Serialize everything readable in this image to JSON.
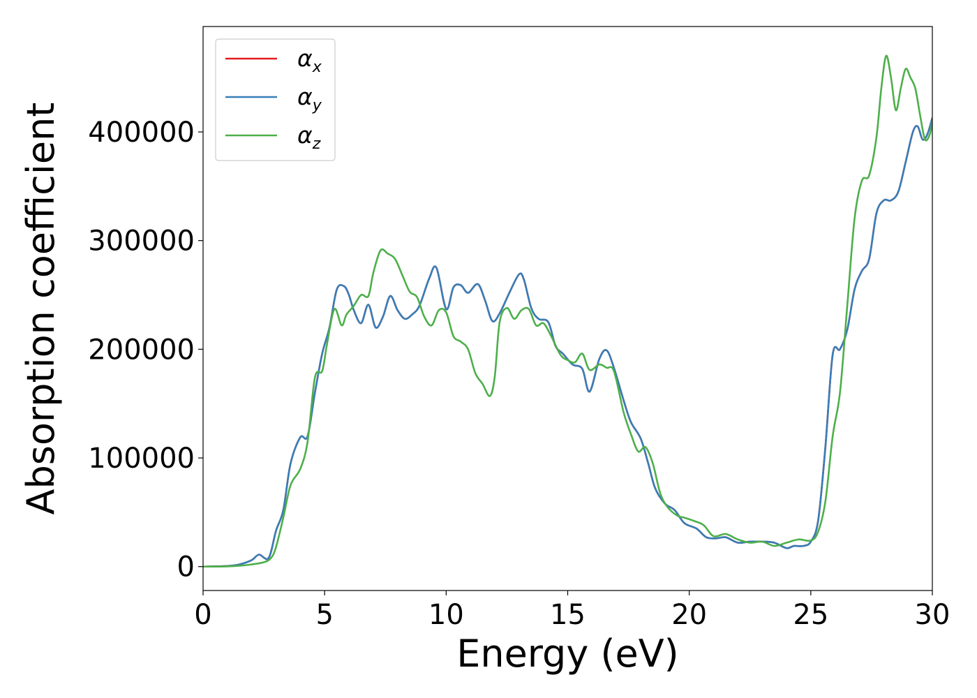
{
  "chart_data": {
    "type": "line",
    "xlabel": "Energy (eV)",
    "ylabel": "Absorption coefficient",
    "xlim": [
      0,
      30
    ],
    "ylim": [
      -22000,
      497000
    ],
    "xticks": [
      0,
      5,
      10,
      15,
      20,
      25,
      30
    ],
    "xtick_labels": [
      "0",
      "5",
      "10",
      "15",
      "20",
      "25",
      "30"
    ],
    "yticks": [
      0,
      100000,
      200000,
      300000,
      400000
    ],
    "ytick_labels": [
      "0",
      "100000",
      "200000",
      "300000",
      "400000"
    ],
    "grid": false,
    "legend_position": "top-left",
    "series": [
      {
        "name": "α",
        "subscript": "x",
        "color": "#e41a1c",
        "x": [
          0,
          1,
          1.5,
          2,
          2.3,
          2.7,
          3,
          3.3,
          3.6,
          4,
          4.3,
          4.6,
          4.9,
          5.2,
          5.5,
          5.8,
          6,
          6.2,
          6.5,
          6.8,
          7.1,
          7.4,
          7.7,
          8,
          8.3,
          8.6,
          8.9,
          9.3,
          9.6,
          10,
          10.3,
          10.6,
          10.9,
          11.3,
          11.6,
          11.9,
          12.2,
          12.6,
          13,
          13.2,
          13.5,
          13.8,
          14.2,
          14.5,
          14.8,
          15.2,
          15.6,
          15.9,
          16.3,
          16.6,
          16.9,
          17.3,
          17.6,
          18,
          18.3,
          18.6,
          19,
          19.4,
          19.8,
          20.3,
          20.7,
          21.1,
          21.5,
          22,
          22.5,
          23,
          23.5,
          24,
          24.3,
          24.7,
          25,
          25.3,
          25.6,
          25.9,
          26.2,
          26.5,
          26.8,
          27.1,
          27.4,
          27.7,
          28,
          28.3,
          28.6,
          28.9,
          29.2,
          29.4,
          29.6,
          29.8,
          30
        ],
        "values": [
          0,
          500,
          2000,
          6000,
          11000,
          8000,
          33000,
          52000,
          95000,
          119000,
          120000,
          160000,
          196000,
          220000,
          255000,
          258000,
          250000,
          236000,
          224000,
          241000,
          220000,
          230000,
          249000,
          236000,
          228000,
          232000,
          240000,
          265000,
          275000,
          237000,
          257000,
          259000,
          252000,
          260000,
          245000,
          226000,
          233000,
          252000,
          269000,
          264000,
          238000,
          228000,
          225000,
          203000,
          196000,
          186000,
          182000,
          161000,
          191000,
          199000,
          183000,
          153000,
          133000,
          118000,
          96000,
          72000,
          58000,
          52000,
          40000,
          35000,
          27000,
          26000,
          27000,
          22000,
          23000,
          23000,
          22000,
          17000,
          19000,
          19000,
          23000,
          42000,
          110000,
          195000,
          200000,
          218000,
          255000,
          272000,
          283000,
          325000,
          337000,
          337000,
          345000,
          372000,
          400000,
          405000,
          393000,
          398000,
          413000
        ]
      },
      {
        "name": "α",
        "subscript": "y",
        "color": "#377eb8",
        "x": [
          0,
          1,
          1.5,
          2,
          2.3,
          2.7,
          3,
          3.3,
          3.6,
          4,
          4.3,
          4.6,
          4.9,
          5.2,
          5.5,
          5.8,
          6,
          6.2,
          6.5,
          6.8,
          7.1,
          7.4,
          7.7,
          8,
          8.3,
          8.6,
          8.9,
          9.3,
          9.6,
          10,
          10.3,
          10.6,
          10.9,
          11.3,
          11.6,
          11.9,
          12.2,
          12.6,
          13,
          13.2,
          13.5,
          13.8,
          14.2,
          14.5,
          14.8,
          15.2,
          15.6,
          15.9,
          16.3,
          16.6,
          16.9,
          17.3,
          17.6,
          18,
          18.3,
          18.6,
          19,
          19.4,
          19.8,
          20.3,
          20.7,
          21.1,
          21.5,
          22,
          22.5,
          23,
          23.5,
          24,
          24.3,
          24.7,
          25,
          25.3,
          25.6,
          25.9,
          26.2,
          26.5,
          26.8,
          27.1,
          27.4,
          27.7,
          28,
          28.3,
          28.6,
          28.9,
          29.2,
          29.4,
          29.6,
          29.8,
          30
        ],
        "values": [
          0,
          500,
          2000,
          6000,
          11000,
          8000,
          33000,
          52000,
          95000,
          119000,
          120000,
          160000,
          196000,
          220000,
          255000,
          258000,
          250000,
          236000,
          224000,
          241000,
          220000,
          230000,
          249000,
          236000,
          228000,
          232000,
          240000,
          265000,
          275000,
          237000,
          257000,
          259000,
          252000,
          260000,
          245000,
          226000,
          233000,
          252000,
          269000,
          264000,
          238000,
          228000,
          225000,
          203000,
          196000,
          186000,
          182000,
          161000,
          191000,
          199000,
          183000,
          153000,
          133000,
          118000,
          96000,
          72000,
          58000,
          52000,
          40000,
          35000,
          27000,
          26000,
          27000,
          22000,
          23000,
          23000,
          22000,
          17000,
          19000,
          19000,
          23000,
          42000,
          110000,
          195000,
          200000,
          218000,
          255000,
          272000,
          283000,
          325000,
          337000,
          337000,
          345000,
          372000,
          400000,
          405000,
          393000,
          398000,
          413000
        ]
      },
      {
        "name": "α",
        "subscript": "z",
        "color": "#4daf4a",
        "x": [
          0,
          1,
          1.5,
          2,
          2.5,
          2.8,
          3,
          3.3,
          3.6,
          4,
          4.3,
          4.6,
          4.9,
          5.1,
          5.4,
          5.7,
          5.9,
          6.2,
          6.5,
          6.8,
          7,
          7.3,
          7.6,
          7.9,
          8.2,
          8.5,
          8.8,
          9.1,
          9.4,
          9.7,
          10,
          10.3,
          10.6,
          10.9,
          11.2,
          11.5,
          11.8,
          12,
          12.2,
          12.5,
          12.8,
          13.1,
          13.4,
          13.7,
          14,
          14.3,
          14.7,
          15,
          15.3,
          15.6,
          15.9,
          16.3,
          16.6,
          16.9,
          17.3,
          17.6,
          17.9,
          18.2,
          18.5,
          18.8,
          19.1,
          19.5,
          19.8,
          20.2,
          20.6,
          21,
          21.5,
          22,
          22.5,
          23,
          23.5,
          24,
          24.5,
          25,
          25.3,
          25.6,
          25.9,
          26.2,
          26.5,
          26.8,
          27.1,
          27.4,
          27.7,
          27.9,
          28.1,
          28.3,
          28.5,
          28.7,
          28.9,
          29.1,
          29.3,
          29.5,
          29.7,
          29.9,
          30
        ],
        "values": [
          0,
          200,
          800,
          2000,
          4000,
          8000,
          18000,
          45000,
          75000,
          90000,
          115000,
          174000,
          180000,
          205000,
          237000,
          222000,
          232000,
          240000,
          250000,
          249000,
          270000,
          291000,
          288000,
          283000,
          268000,
          253000,
          248000,
          230000,
          222000,
          236000,
          234000,
          212000,
          207000,
          200000,
          178000,
          168000,
          157000,
          175000,
          225000,
          238000,
          228000,
          236000,
          237000,
          222000,
          224000,
          213000,
          195000,
          190000,
          188000,
          196000,
          181000,
          186000,
          183000,
          180000,
          142000,
          122000,
          106000,
          110000,
          95000,
          68000,
          55000,
          47000,
          45000,
          42000,
          38000,
          28000,
          30000,
          25000,
          22000,
          23000,
          19000,
          22000,
          25000,
          24000,
          32000,
          60000,
          120000,
          160000,
          240000,
          320000,
          355000,
          360000,
          395000,
          440000,
          470000,
          450000,
          420000,
          440000,
          458000,
          450000,
          440000,
          415000,
          393000,
          398000,
          410000
        ]
      }
    ]
  }
}
